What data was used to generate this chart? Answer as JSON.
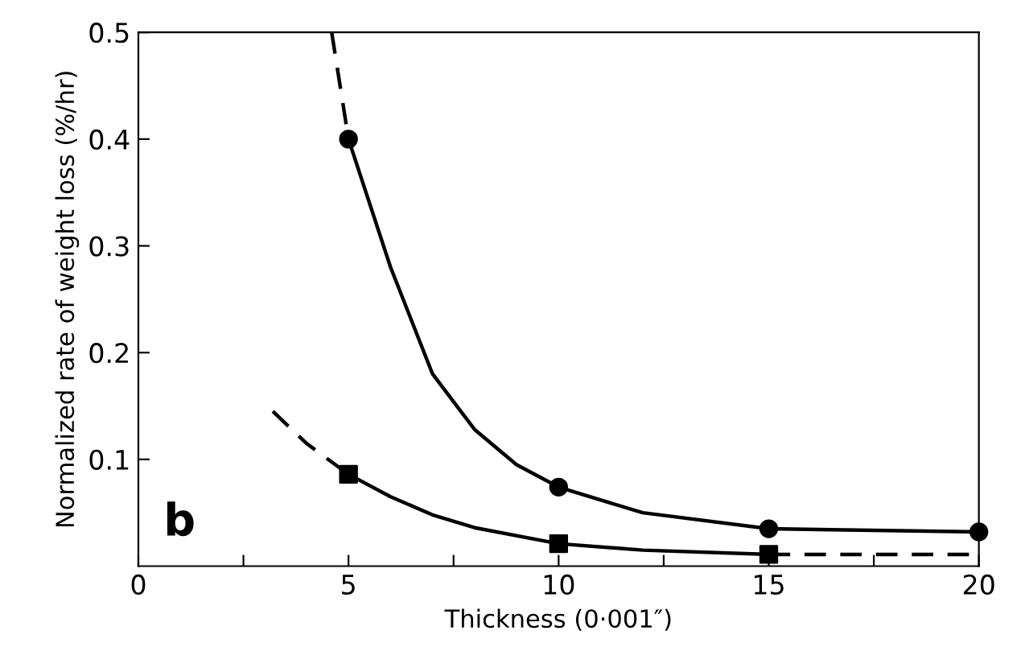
{
  "chart_data": {
    "type": "line",
    "xlabel": "Thickness (0·001″)",
    "ylabel": "Normalized rate of weight loss (%/hr)",
    "annotations": [
      "b"
    ],
    "xlim": [
      0,
      20
    ],
    "ylim": [
      0,
      0.5
    ],
    "xticks": [
      {
        "value": 0,
        "label": "0"
      },
      {
        "value": 2.5,
        "label": null
      },
      {
        "value": 5,
        "label": "5"
      },
      {
        "value": 7.5,
        "label": null
      },
      {
        "value": 10,
        "label": "10"
      },
      {
        "value": 12.5,
        "label": null
      },
      {
        "value": 15,
        "label": "15"
      },
      {
        "value": 17.5,
        "label": null
      },
      {
        "value": 20,
        "label": "20"
      }
    ],
    "yticks": [
      0.1,
      0.2,
      0.3,
      0.4,
      0.5
    ],
    "grid": false,
    "legend": false,
    "series": [
      {
        "color": "#000000",
        "line_style": "dashed",
        "marker": "none",
        "x": [
          4.6,
          4.8,
          5
        ],
        "values": [
          0.5,
          0.45,
          0.4
        ]
      },
      {
        "color": "#000000",
        "line_style": "solid",
        "marker": "none",
        "x": [
          5,
          6,
          7,
          8,
          9,
          10,
          12,
          15,
          20
        ],
        "values": [
          0.4,
          0.28,
          0.18,
          0.128,
          0.095,
          0.074,
          0.05,
          0.035,
          0.032
        ]
      },
      {
        "color": "#000000",
        "line_style": "dashed",
        "marker": "none",
        "x": [
          3.2,
          4,
          5
        ],
        "values": [
          0.145,
          0.115,
          0.086
        ]
      },
      {
        "color": "#000000",
        "line_style": "solid",
        "marker": "none",
        "x": [
          5,
          6,
          7,
          8,
          10,
          12,
          15
        ],
        "values": [
          0.086,
          0.065,
          0.048,
          0.036,
          0.021,
          0.015,
          0.011
        ]
      },
      {
        "color": "#000000",
        "line_style": "dashed",
        "marker": "none",
        "x": [
          15,
          20
        ],
        "values": [
          0.011,
          0.011
        ]
      },
      {
        "type": "scatter",
        "color": "#000000",
        "marker": "circle",
        "x": [
          5,
          10,
          15,
          20
        ],
        "values": [
          0.4,
          0.074,
          0.035,
          0.032
        ]
      },
      {
        "type": "scatter",
        "color": "#000000",
        "marker": "square",
        "x": [
          5,
          10,
          15
        ],
        "values": [
          0.086,
          0.021,
          0.011
        ]
      }
    ]
  }
}
